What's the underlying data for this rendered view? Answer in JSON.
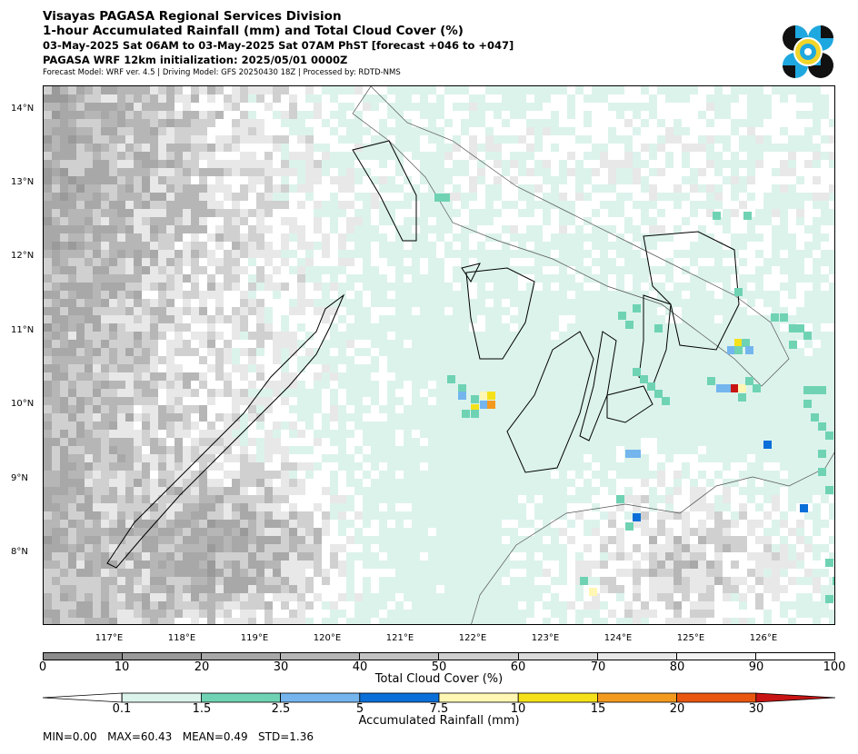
{
  "header": {
    "line1": "Visayas PAGASA Regional Services Division",
    "line2": "1-hour Accumulated Rainfall (mm) and Total Cloud Cover (%)",
    "line3": "03-May-2025 Sat 06AM to 03-May-2025 Sat 07AM PhST [forecast +046 to +047]",
    "line4": "PAGASA WRF 12km initialization: 2025/05/01 0000Z",
    "line5": "Forecast Model: WRF ver. 4.5 | Driving Model: GFS 20250430 18Z | Processed by: RDTD-NMS"
  },
  "map": {
    "lat_labels": [
      "14°N",
      "13°N",
      "12°N",
      "11°N",
      "10°N",
      "9°N",
      "8°N"
    ],
    "lon_labels": [
      "117°E",
      "118°E",
      "119°E",
      "120°E",
      "121°E",
      "122°E",
      "123°E",
      "124°E",
      "125°E",
      "126°E"
    ],
    "lon_range": [
      116.0,
      126.9
    ],
    "lat_range": [
      7.0,
      14.3
    ],
    "base_color": "#dcf3ec",
    "land_color": "#ffffff",
    "coast_color": "#000000"
  },
  "cloud_colorbar": {
    "title": "Total Cloud Cover (%)",
    "ticks": [
      "0",
      "10",
      "20",
      "30",
      "40",
      "50",
      "60",
      "70",
      "80",
      "90",
      "100"
    ],
    "colors": [
      "#8c8c8c",
      "#9a9a9a",
      "#a8a8a8",
      "#b6b6b6",
      "#c3c3c3",
      "#d0d0d0",
      "#dcdcdc",
      "#e8e8e8",
      "#f3f3f3",
      "#ffffff"
    ]
  },
  "rain_colorbar": {
    "title": "Accumulated Rainfall (mm)",
    "ticks": [
      "0.1",
      "1.5",
      "2.5",
      "5",
      "7.5",
      "10",
      "15",
      "20",
      "30"
    ],
    "colors": [
      "#ffffff",
      "#dcf3ec",
      "#6fd3b3",
      "#74b5ee",
      "#0a6fd8",
      "#fff7b3",
      "#f5e11a",
      "#f39a1e",
      "#e8560f",
      "#c81414"
    ]
  },
  "stats": "MIN=0.00   MAX=60.43   MEAN=0.49   STD=1.36"
}
